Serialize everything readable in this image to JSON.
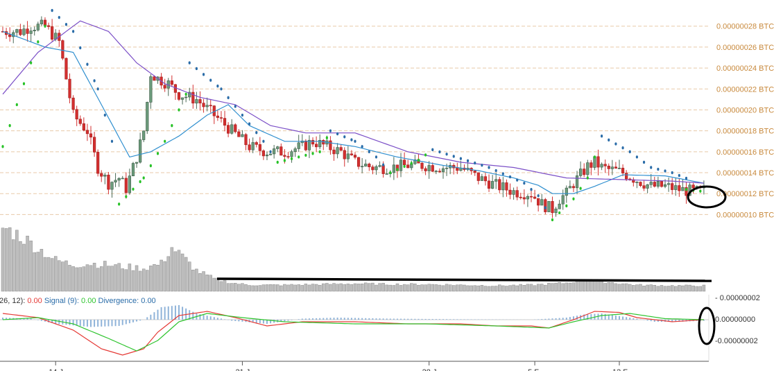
{
  "chart_data": {
    "type": "candlestick",
    "colors": {
      "up_candle": "#6c9c7c",
      "down_candle": "#d32f2f",
      "sma_short": "#2f8fcf",
      "sma_long": "#7b4fc7",
      "psar_below": "#27c227",
      "psar_above": "#2a6ca8",
      "volume": "#bdbdbd",
      "macd": "#e53935",
      "signal": "#2ec42e",
      "divergence": "#8fb3d9",
      "price_axis_text": "#c8893c",
      "grid": "#e8c9a8",
      "annotation": "#000000"
    },
    "price_axis": {
      "unit": "BTC",
      "ylim": [
        9.3e-08,
        3.05e-07
      ],
      "ticks": [
        "0.00000028 BTC",
        "0.00000026 BTC",
        "0.00000024 BTC",
        "0.00000022 BTC",
        "0.00000020 BTC",
        "0.00000018 BTC",
        "0.00000016 BTC",
        "0.00000014 BTC",
        "0.00000012 BTC",
        "0.00000010 BTC"
      ],
      "tick_values": [
        2.8e-07,
        2.6e-07,
        2.4e-07,
        2.2e-07,
        2e-07,
        1.8e-07,
        1.6e-07,
        1.4e-07,
        1.2e-07,
        1e-07
      ]
    },
    "x_labels": [
      "14 J",
      "21 J",
      "28 J",
      "5 F",
      "12 F"
    ],
    "x_label_positions": [
      15,
      68,
      121,
      151,
      175
    ],
    "candles_count": 200,
    "candle_keypoints": [
      [
        0,
        2.75
      ],
      [
        5,
        2.75
      ],
      [
        8,
        2.8
      ],
      [
        12,
        2.8
      ],
      [
        16,
        2.65
      ],
      [
        18,
        2.3
      ],
      [
        20,
        1.95
      ],
      [
        24,
        1.8
      ],
      [
        27,
        1.45
      ],
      [
        30,
        1.3
      ],
      [
        33,
        1.35
      ],
      [
        35,
        1.25
      ],
      [
        38,
        1.55
      ],
      [
        40,
        1.8
      ],
      [
        42,
        2.35
      ],
      [
        44,
        2.3
      ],
      [
        47,
        2.25
      ],
      [
        50,
        2.15
      ],
      [
        55,
        2.1
      ],
      [
        60,
        1.95
      ],
      [
        65,
        1.8
      ],
      [
        70,
        1.65
      ],
      [
        75,
        1.6
      ],
      [
        80,
        1.6
      ],
      [
        85,
        1.65
      ],
      [
        88,
        1.7
      ],
      [
        92,
        1.65
      ],
      [
        96,
        1.6
      ],
      [
        100,
        1.5
      ],
      [
        105,
        1.45
      ],
      [
        110,
        1.45
      ],
      [
        115,
        1.47
      ],
      [
        120,
        1.47
      ],
      [
        125,
        1.45
      ],
      [
        130,
        1.45
      ],
      [
        135,
        1.35
      ],
      [
        140,
        1.28
      ],
      [
        145,
        1.22
      ],
      [
        150,
        1.2
      ],
      [
        153,
        1.1
      ],
      [
        156,
        1.05
      ],
      [
        158,
        1.15
      ],
      [
        160,
        1.2
      ],
      [
        162,
        1.3
      ],
      [
        164,
        1.38
      ],
      [
        166,
        1.46
      ],
      [
        168,
        1.5
      ],
      [
        170,
        1.45
      ],
      [
        172,
        1.43
      ],
      [
        174,
        1.42
      ],
      [
        176,
        1.4
      ],
      [
        180,
        1.33
      ],
      [
        184,
        1.27
      ],
      [
        188,
        1.27
      ],
      [
        192,
        1.24
      ],
      [
        196,
        1.22
      ],
      [
        199,
        1.22
      ]
    ],
    "psar_keypoints": [
      [
        0,
        1.65,
        "below"
      ],
      [
        10,
        2.65,
        "below"
      ],
      [
        14,
        2.95,
        "above"
      ],
      [
        20,
        2.75,
        "above"
      ],
      [
        27,
        2.2,
        "above"
      ],
      [
        31,
        1.7,
        "above"
      ],
      [
        33,
        1.1,
        "below"
      ],
      [
        40,
        1.35,
        "below"
      ],
      [
        46,
        1.7,
        "below"
      ],
      [
        52,
        2.15,
        "below"
      ],
      [
        53,
        2.45,
        "above"
      ],
      [
        62,
        2.2,
        "above"
      ],
      [
        68,
        1.95,
        "above"
      ],
      [
        74,
        1.7,
        "above"
      ],
      [
        78,
        1.5,
        "below"
      ],
      [
        90,
        1.6,
        "below"
      ],
      [
        93,
        1.8,
        "above"
      ],
      [
        100,
        1.7,
        "above"
      ],
      [
        106,
        1.55,
        "above"
      ],
      [
        110,
        1.4,
        "below"
      ],
      [
        118,
        1.52,
        "below"
      ],
      [
        122,
        1.62,
        "above"
      ],
      [
        138,
        1.45,
        "above"
      ],
      [
        148,
        1.3,
        "above"
      ],
      [
        152,
        1.18,
        "above"
      ],
      [
        156,
        0.95,
        "below"
      ],
      [
        162,
        1.15,
        "below"
      ],
      [
        166,
        1.35,
        "below"
      ],
      [
        170,
        1.75,
        "above"
      ],
      [
        178,
        1.6,
        "above"
      ],
      [
        184,
        1.45,
        "above"
      ],
      [
        190,
        1.4,
        "above"
      ],
      [
        196,
        1.32,
        "above"
      ],
      [
        194,
        1.24,
        "below"
      ],
      [
        199,
        1.22,
        "below"
      ]
    ],
    "sma_short_keypoints": [
      [
        0,
        2.75
      ],
      [
        12,
        2.6
      ],
      [
        20,
        2.55
      ],
      [
        28,
        2.05
      ],
      [
        36,
        1.55
      ],
      [
        42,
        1.6
      ],
      [
        50,
        1.75
      ],
      [
        58,
        1.95
      ],
      [
        64,
        2.05
      ],
      [
        70,
        1.85
      ],
      [
        80,
        1.7
      ],
      [
        90,
        1.7
      ],
      [
        100,
        1.65
      ],
      [
        112,
        1.55
      ],
      [
        125,
        1.47
      ],
      [
        135,
        1.42
      ],
      [
        145,
        1.35
      ],
      [
        152,
        1.28
      ],
      [
        156,
        1.2
      ],
      [
        162,
        1.2
      ],
      [
        168,
        1.27
      ],
      [
        176,
        1.38
      ],
      [
        188,
        1.37
      ],
      [
        199,
        1.3
      ]
    ],
    "sma_long_keypoints": [
      [
        0,
        2.15
      ],
      [
        10,
        2.55
      ],
      [
        22,
        2.85
      ],
      [
        30,
        2.75
      ],
      [
        38,
        2.45
      ],
      [
        46,
        2.25
      ],
      [
        56,
        2.12
      ],
      [
        66,
        2.05
      ],
      [
        76,
        1.85
      ],
      [
        86,
        1.78
      ],
      [
        100,
        1.78
      ],
      [
        115,
        1.6
      ],
      [
        130,
        1.5
      ],
      [
        145,
        1.45
      ],
      [
        160,
        1.35
      ],
      [
        170,
        1.34
      ],
      [
        180,
        1.33
      ],
      [
        190,
        1.32
      ],
      [
        199,
        1.3
      ]
    ],
    "volume_keypoints": [
      [
        0,
        92
      ],
      [
        5,
        80
      ],
      [
        10,
        62
      ],
      [
        15,
        45
      ],
      [
        20,
        38
      ],
      [
        25,
        40
      ],
      [
        30,
        38
      ],
      [
        35,
        35
      ],
      [
        40,
        33
      ],
      [
        45,
        40
      ],
      [
        48,
        63
      ],
      [
        51,
        50
      ],
      [
        55,
        30
      ],
      [
        60,
        18
      ],
      [
        65,
        12
      ],
      [
        70,
        9
      ],
      [
        80,
        9
      ],
      [
        90,
        10
      ],
      [
        100,
        11
      ],
      [
        110,
        10
      ],
      [
        120,
        10
      ],
      [
        130,
        9
      ],
      [
        140,
        8
      ],
      [
        150,
        9
      ],
      [
        160,
        12
      ],
      [
        166,
        18
      ],
      [
        170,
        14
      ],
      [
        180,
        9
      ],
      [
        190,
        8
      ],
      [
        199,
        8
      ]
    ],
    "macd_legend": {
      "prefix": "26, 12): ",
      "prefix_value": "0.00",
      "signal_label": " Signal (9): ",
      "signal_value": "0.00",
      "divergence_label": " Divergence: ",
      "divergence_value": "0.00"
    },
    "macd_axis": {
      "ticks": [
        "- 0.00000002",
        "0.00000000",
        "-0.00000002"
      ]
    },
    "macd_keypoints": [
      [
        0,
        0.3
      ],
      [
        10,
        0.1
      ],
      [
        20,
        -0.5
      ],
      [
        28,
        -1.4
      ],
      [
        34,
        -1.7
      ],
      [
        40,
        -1.4
      ],
      [
        44,
        -0.6
      ],
      [
        50,
        0.2
      ],
      [
        58,
        0.4
      ],
      [
        66,
        0.1
      ],
      [
        75,
        -0.3
      ],
      [
        85,
        -0.1
      ],
      [
        100,
        -0.1
      ],
      [
        115,
        -0.2
      ],
      [
        130,
        -0.2
      ],
      [
        140,
        -0.3
      ],
      [
        150,
        -0.3
      ],
      [
        155,
        -0.4
      ],
      [
        162,
        0.0
      ],
      [
        168,
        0.4
      ],
      [
        175,
        0.35
      ],
      [
        180,
        0.1
      ],
      [
        190,
        -0.1
      ],
      [
        199,
        0.0
      ]
    ],
    "signal_keypoints": [
      [
        0,
        0.0
      ],
      [
        10,
        0.1
      ],
      [
        20,
        -0.2
      ],
      [
        30,
        -0.9
      ],
      [
        38,
        -1.5
      ],
      [
        44,
        -1.0
      ],
      [
        50,
        -0.1
      ],
      [
        58,
        0.3
      ],
      [
        68,
        0.1
      ],
      [
        80,
        -0.1
      ],
      [
        100,
        -0.2
      ],
      [
        120,
        -0.2
      ],
      [
        140,
        -0.3
      ],
      [
        155,
        -0.4
      ],
      [
        162,
        -0.1
      ],
      [
        170,
        0.2
      ],
      [
        178,
        0.3
      ],
      [
        188,
        0.05
      ],
      [
        199,
        0.0
      ]
    ],
    "divergence_keypoints": [
      [
        0,
        0.1
      ],
      [
        8,
        0.05
      ],
      [
        15,
        -0.2
      ],
      [
        25,
        -0.35
      ],
      [
        33,
        -0.3
      ],
      [
        40,
        0.0
      ],
      [
        45,
        0.6
      ],
      [
        50,
        0.7
      ],
      [
        55,
        0.3
      ],
      [
        65,
        -0.05
      ],
      [
        75,
        -0.2
      ],
      [
        85,
        0.05
      ],
      [
        95,
        0.1
      ],
      [
        110,
        0.05
      ],
      [
        130,
        0.02
      ],
      [
        150,
        0.0
      ],
      [
        160,
        0.1
      ],
      [
        165,
        0.25
      ],
      [
        170,
        0.3
      ],
      [
        178,
        0.1
      ],
      [
        185,
        -0.1
      ],
      [
        192,
        -0.1
      ],
      [
        199,
        -0.05
      ]
    ]
  }
}
